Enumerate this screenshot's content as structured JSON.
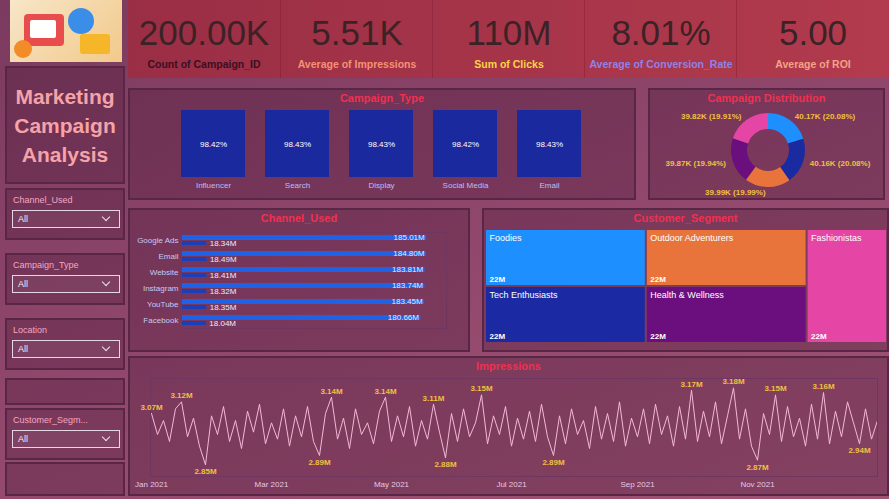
{
  "header": {
    "title": "Marketing Campaign Analysis"
  },
  "kpis": [
    {
      "value": "200.00K",
      "label": "Count of Campaign_ID"
    },
    {
      "value": "5.51K",
      "label": "Average of Impressions"
    },
    {
      "value": "110M",
      "label": "Sum of Clicks"
    },
    {
      "value": "8.01%",
      "label": "Average of Conversion_Rate"
    },
    {
      "value": "5.00",
      "label": "Average of ROI"
    }
  ],
  "filters": [
    {
      "label": "Channel_Used",
      "value": "All"
    },
    {
      "label": "Campaign_Type",
      "value": "All"
    },
    {
      "label": "Location",
      "value": "All"
    },
    {
      "label": "Customer_Segm...",
      "value": "All"
    }
  ],
  "chart_data": [
    {
      "type": "cards",
      "title": "Campaign_Type",
      "categories": [
        "Influencer",
        "Search",
        "Display",
        "Social Media",
        "Email"
      ],
      "values": [
        98.42,
        98.43,
        98.43,
        98.42,
        98.43
      ],
      "value_labels": [
        "98.42%",
        "98.43%",
        "98.43%",
        "98.42%",
        "98.43%"
      ],
      "color": "#1a2a9e",
      "data_labels": true,
      "tick_labels": "x"
    },
    {
      "type": "donut",
      "title": "Campaign Distribution",
      "values": [
        40170,
        40160,
        39990,
        39870,
        39820
      ],
      "value_labels": [
        "40.17K (20.08%)",
        "40.16K (20.08%)",
        "39.99K (19.99%)",
        "39.87K (19.94%)",
        "39.82K (19.91%)"
      ],
      "colors": [
        "#1e8fff",
        "#1a2aa0",
        "#e8743b",
        "#6b0f7e",
        "#e545a4"
      ],
      "data_labels": true
    },
    {
      "type": "bar",
      "title": "Channel_Used",
      "orientation": "horizontal",
      "categories": [
        "Google Ads",
        "Email",
        "Website",
        "Instagram",
        "YouTube",
        "Facebook"
      ],
      "series": [
        {
          "color": "#1f62e6",
          "values": [
            185010000,
            184800000,
            183810000,
            183740000,
            183450000,
            180660000
          ],
          "value_labels": [
            "185.01M",
            "184.80M",
            "183.81M",
            "183.74M",
            "183.45M",
            "180.66M"
          ]
        },
        {
          "color": "#1a3fb8",
          "values": [
            18340000,
            18490000,
            18410000,
            18320000,
            18350000,
            18040000
          ],
          "value_labels": [
            "18.34M",
            "18.49M",
            "18.41M",
            "18.32M",
            "18.35M",
            "18.04M"
          ]
        }
      ],
      "xlim": [
        0,
        200000000
      ],
      "data_labels": true,
      "tick_labels": "y"
    },
    {
      "type": "treemap",
      "title": "Customer_Segment",
      "categories": [
        "Foodies",
        "Outdoor Adventurers",
        "Fashionistas",
        "Tech Enthusiasts",
        "Health & Wellness"
      ],
      "values": [
        22000000,
        22000000,
        22000000,
        22000000,
        22000000
      ],
      "value_labels": [
        "22M",
        "22M",
        "22M",
        "22M",
        "22M"
      ],
      "colors": [
        "#1e8fff",
        "#e8743b",
        "#e545a4",
        "#1b2aa3",
        "#6b0f7e"
      ],
      "data_labels": true
    },
    {
      "type": "line",
      "title": "Impressions",
      "categories": [
        "Jan 2021",
        null,
        null,
        null,
        null,
        null,
        null,
        null,
        null,
        null,
        null,
        null,
        null,
        null,
        null,
        null,
        null,
        null,
        null,
        null,
        "Mar 2021",
        null,
        null,
        null,
        null,
        null,
        null,
        null,
        null,
        null,
        null,
        null,
        null,
        null,
        null,
        null,
        null,
        null,
        null,
        null,
        "May 2021",
        null,
        null,
        null,
        null,
        null,
        null,
        null,
        null,
        null,
        null,
        null,
        null,
        null,
        null,
        null,
        null,
        null,
        null,
        null,
        "Jul 2021",
        null,
        null,
        null,
        null,
        null,
        null,
        null,
        null,
        null,
        null,
        null,
        null,
        null,
        null,
        null,
        null,
        null,
        null,
        null,
        null,
        "Sep 2021",
        null,
        null,
        null,
        null,
        null,
        null,
        null,
        null,
        null,
        null,
        null,
        null,
        null,
        null,
        null,
        null,
        null,
        null,
        null,
        "Nov 2021",
        null,
        null,
        null,
        null,
        null,
        null,
        null,
        null,
        null,
        null,
        null,
        null,
        null,
        null,
        null,
        null,
        null,
        null,
        null,
        null
      ],
      "values": [
        3.07,
        2.98,
        3.04,
        2.95,
        3.09,
        3.12,
        2.97,
        3.05,
        2.93,
        2.85,
        3.06,
        2.98,
        3.1,
        2.95,
        3.04,
        2.92,
        3.08,
        2.99,
        3.11,
        2.94,
        3.03,
        2.96,
        3.09,
        2.93,
        3.06,
        2.97,
        3.1,
        2.95,
        2.89,
        3.07,
        3.14,
        2.96,
        3.05,
        2.92,
        3.09,
        2.98,
        3.03,
        2.94,
        3.08,
        3.14,
        2.95,
        3.06,
        2.97,
        3.1,
        2.93,
        3.04,
        2.96,
        3.11,
        2.99,
        2.88,
        3.07,
        2.95,
        3.09,
        2.97,
        3.03,
        3.15,
        2.94,
        3.06,
        2.98,
        3.1,
        2.93,
        3.05,
        2.96,
        3.08,
        2.95,
        3.11,
        2.97,
        2.89,
        3.06,
        2.94,
        3.09,
        2.98,
        3.04,
        2.92,
        3.1,
        2.96,
        3.07,
        2.95,
        3.12,
        2.93,
        3.05,
        2.97,
        3.09,
        2.94,
        3.11,
        2.98,
        3.06,
        2.93,
        3.1,
        2.96,
        3.17,
        2.95,
        3.08,
        2.97,
        3.12,
        2.94,
        3.06,
        3.18,
        2.96,
        3.09,
        2.93,
        2.87,
        3.07,
        2.98,
        3.15,
        2.95,
        3.1,
        2.97,
        3.05,
        2.93,
        3.11,
        2.96,
        3.16,
        2.94,
        3.08,
        2.97,
        3.12,
        3.03,
        2.94,
        3.09,
        2.96,
        3.04
      ],
      "value_labels": [
        "3.07M",
        null,
        null,
        null,
        null,
        "3.12M",
        null,
        null,
        null,
        "2.85M",
        null,
        null,
        null,
        null,
        null,
        null,
        null,
        null,
        null,
        null,
        null,
        null,
        null,
        null,
        null,
        null,
        null,
        null,
        "2.89M",
        null,
        "3.14M",
        null,
        null,
        null,
        null,
        null,
        null,
        null,
        null,
        "3.14M",
        null,
        null,
        null,
        null,
        null,
        null,
        null,
        "3.11M",
        null,
        "2.88M",
        null,
        null,
        null,
        null,
        null,
        "3.15M",
        null,
        null,
        null,
        null,
        null,
        null,
        null,
        null,
        null,
        null,
        null,
        "2.89M",
        null,
        null,
        null,
        null,
        null,
        null,
        null,
        null,
        null,
        null,
        null,
        null,
        null,
        null,
        null,
        null,
        null,
        null,
        null,
        null,
        null,
        null,
        "3.17M",
        null,
        null,
        null,
        null,
        null,
        null,
        "3.18M",
        null,
        null,
        null,
        "2.87M",
        null,
        null,
        "3.15M",
        null,
        null,
        null,
        null,
        null,
        null,
        null,
        "3.16M",
        null,
        null,
        null,
        null,
        null,
        "2.94M",
        null,
        null,
        null
      ],
      "color": "#f2b8d8",
      "ylim": [
        2.8,
        3.22
      ],
      "data_labels": true,
      "tick_labels": "x"
    }
  ]
}
